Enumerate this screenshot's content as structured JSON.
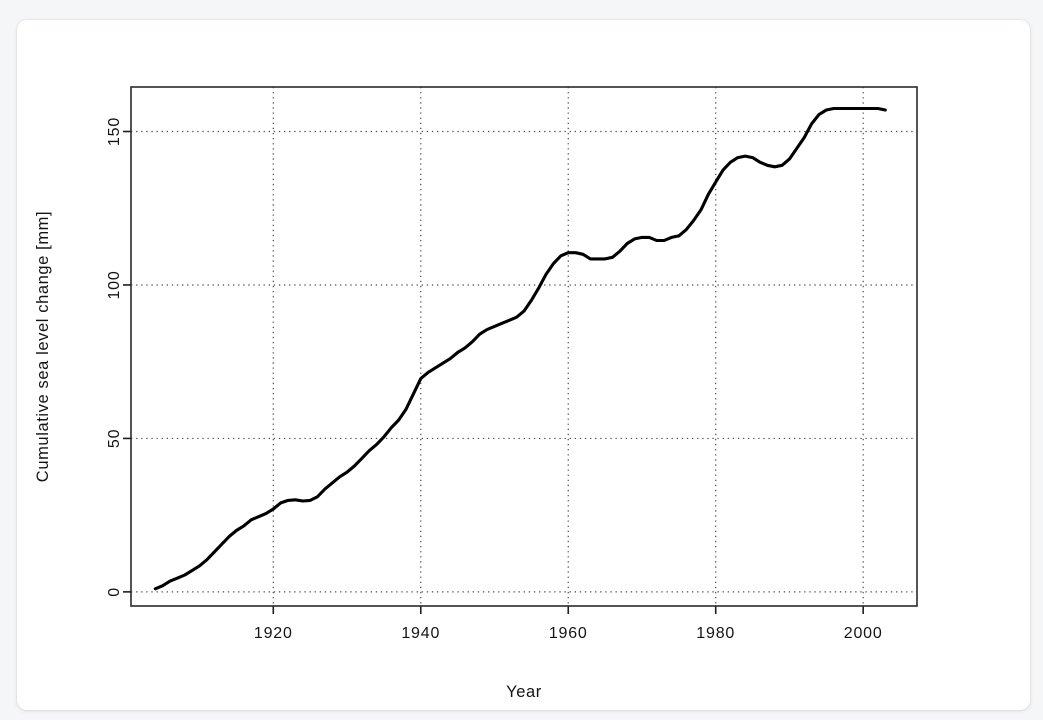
{
  "page": {
    "background_color": "#f5f6f7",
    "card_background_color": "#ffffff"
  },
  "chart_data": {
    "type": "line",
    "title": "",
    "xlabel": "Year",
    "ylabel": "Cumulative sea level change [mm]",
    "xlim": [
      1900.7,
      2007.3
    ],
    "ylim": [
      -4.6,
      164.5
    ],
    "x_ticks": [
      1920,
      1940,
      1960,
      1980,
      2000
    ],
    "y_ticks": [
      0,
      50,
      100,
      150
    ],
    "grid": "dotted",
    "grid_color": "#4a4a4a",
    "line_color": "#000000",
    "legend": "none",
    "series": [
      {
        "name": "Cumulative sea level change",
        "x": [
          1904,
          1905,
          1906,
          1907,
          1908,
          1909,
          1910,
          1911,
          1912,
          1913,
          1914,
          1915,
          1916,
          1917,
          1918,
          1919,
          1920,
          1921,
          1922,
          1923,
          1924,
          1925,
          1926,
          1927,
          1928,
          1929,
          1930,
          1931,
          1932,
          1933,
          1934,
          1935,
          1936,
          1937,
          1938,
          1939,
          1940,
          1941,
          1942,
          1943,
          1944,
          1945,
          1946,
          1947,
          1948,
          1949,
          1950,
          1951,
          1952,
          1953,
          1954,
          1955,
          1956,
          1957,
          1958,
          1959,
          1960,
          1961,
          1962,
          1963,
          1964,
          1965,
          1966,
          1967,
          1968,
          1969,
          1970,
          1971,
          1972,
          1973,
          1974,
          1975,
          1976,
          1977,
          1978,
          1979,
          1980,
          1981,
          1982,
          1983,
          1984,
          1985,
          1986,
          1987,
          1988,
          1989,
          1990,
          1991,
          1992,
          1993,
          1994,
          1995,
          1996,
          1997,
          1998,
          1999,
          2000,
          2001,
          2002,
          2003
        ],
        "y": [
          1,
          2,
          3.5,
          4.5,
          5.5,
          7,
          8.5,
          10.5,
          13,
          15.5,
          18,
          20,
          21.5,
          23.5,
          24.5,
          25.5,
          27,
          29,
          29.8,
          30,
          29.6,
          29.8,
          31,
          33.5,
          35.5,
          37.5,
          39,
          41,
          43.5,
          46,
          48,
          50.5,
          53.5,
          56,
          59.5,
          64.5,
          69.5,
          71.5,
          73,
          74.5,
          76,
          78,
          79.5,
          81.5,
          84,
          85.5,
          86.5,
          87.5,
          88.5,
          89.5,
          91.5,
          95,
          99,
          103.5,
          107,
          109.5,
          110.5,
          110.5,
          110,
          108.5,
          108.5,
          108.5,
          109,
          111,
          113.5,
          115,
          115.5,
          115.5,
          114.5,
          114.5,
          115.5,
          116,
          118,
          121,
          124.5,
          129.5,
          133.5,
          137.5,
          140,
          141.5,
          142,
          141.5,
          140,
          139,
          138.5,
          139,
          141,
          144.5,
          148,
          152.5,
          155.5,
          157,
          157.5,
          157.5,
          157.5,
          157.5,
          157.5,
          157.5,
          157.5,
          157
        ]
      }
    ]
  }
}
